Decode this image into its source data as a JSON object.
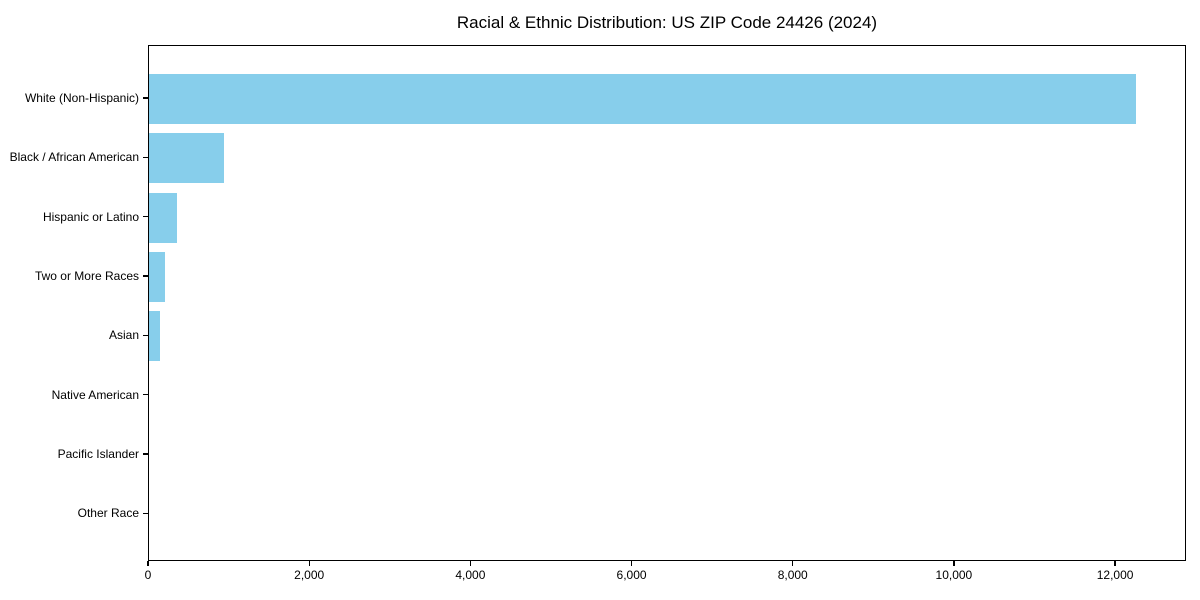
{
  "figure": {
    "background": "#ffffff",
    "axis_color": "#000000",
    "text_color": "#000000"
  },
  "chart_data": {
    "type": "bar",
    "orientation": "horizontal",
    "title": "Racial & Ethnic Distribution: US ZIP Code 24426 (2024)",
    "categories": [
      "White (Non-Hispanic)",
      "Black / African American",
      "Hispanic or Latino",
      "Two or More Races",
      "Asian",
      "Native American",
      "Pacific Islander",
      "Other Race"
    ],
    "values": [
      12250,
      930,
      345,
      195,
      135,
      0,
      0,
      0
    ],
    "xlabel": "",
    "ylabel": "",
    "xlim": [
      0,
      12880
    ],
    "xticks": [
      0,
      2000,
      4000,
      6000,
      8000,
      10000,
      12000
    ],
    "xtick_labels": [
      "0",
      "2,000",
      "4,000",
      "6,000",
      "8,000",
      "10,000",
      "12,000"
    ],
    "bar_color": "#87CEEB",
    "grid": false,
    "legend": null
  }
}
